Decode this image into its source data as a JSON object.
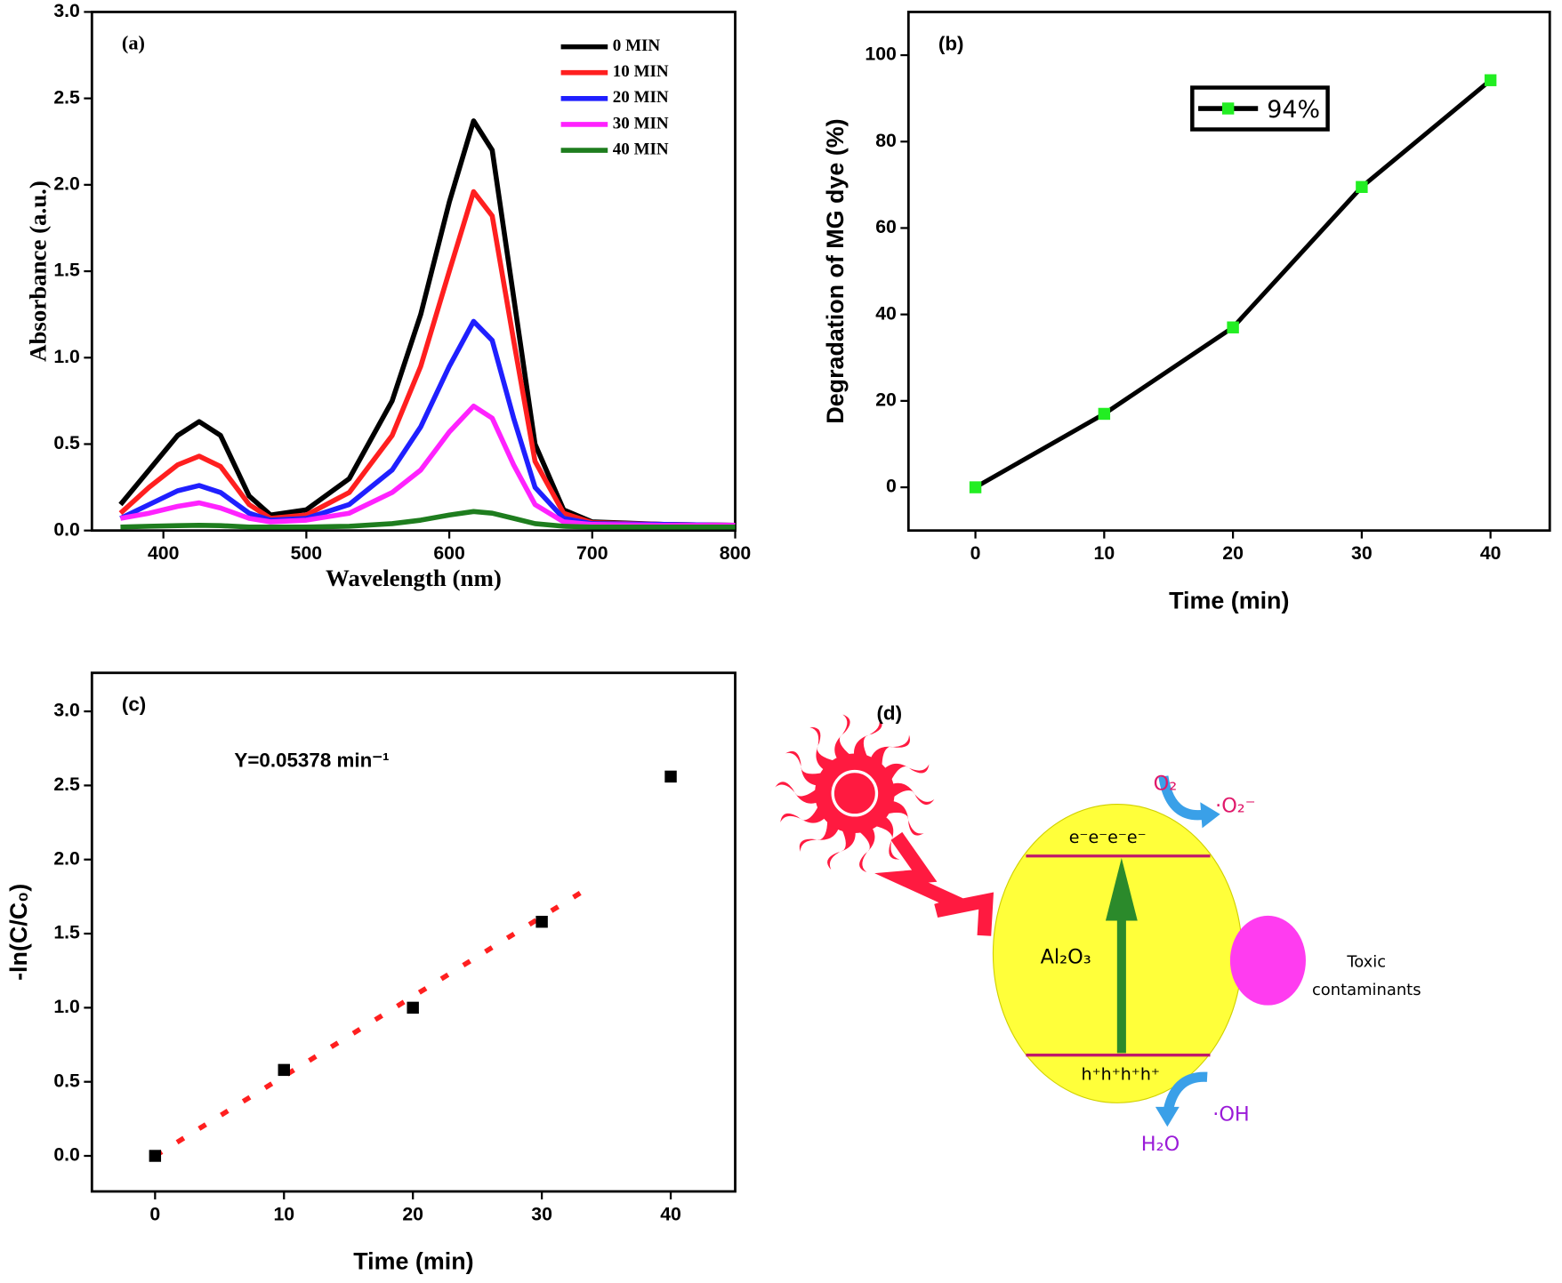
{
  "chart_data": [
    {
      "type": "line",
      "title": "(a)",
      "x_label": "Wavelength (nm)",
      "y_label": "Absorbance (a.u.)",
      "x": [
        370,
        390,
        410,
        425,
        440,
        460,
        475,
        500,
        530,
        560,
        580,
        600,
        617,
        630,
        645,
        660,
        680,
        700,
        750,
        800
      ],
      "series": [
        {
          "name": "0  MIN",
          "color": "#000000",
          "values": [
            0.15,
            0.35,
            0.55,
            0.63,
            0.55,
            0.2,
            0.09,
            0.12,
            0.3,
            0.75,
            1.25,
            1.9,
            2.37,
            2.2,
            1.35,
            0.5,
            0.12,
            0.05,
            0.035,
            0.03
          ]
        },
        {
          "name": "10 MIN",
          "color": "#ff1f1f",
          "values": [
            0.1,
            0.25,
            0.38,
            0.43,
            0.37,
            0.15,
            0.07,
            0.09,
            0.22,
            0.55,
            0.95,
            1.5,
            1.96,
            1.82,
            1.1,
            0.4,
            0.1,
            0.045,
            0.035,
            0.03
          ]
        },
        {
          "name": "20 MIN",
          "color": "#1f1fff",
          "values": [
            0.07,
            0.15,
            0.23,
            0.26,
            0.22,
            0.1,
            0.06,
            0.07,
            0.15,
            0.35,
            0.6,
            0.95,
            1.21,
            1.1,
            0.65,
            0.25,
            0.07,
            0.04,
            0.035,
            0.03
          ]
        },
        {
          "name": "30 MIN",
          "color": "#ff22ff",
          "values": [
            0.07,
            0.1,
            0.14,
            0.16,
            0.13,
            0.07,
            0.05,
            0.06,
            0.1,
            0.22,
            0.35,
            0.57,
            0.72,
            0.65,
            0.38,
            0.15,
            0.05,
            0.035,
            0.03,
            0.03
          ]
        },
        {
          "name": "40 MIN",
          "color": "#1e7d1e",
          "values": [
            0.02,
            0.025,
            0.028,
            0.03,
            0.028,
            0.02,
            0.02,
            0.02,
            0.025,
            0.04,
            0.06,
            0.09,
            0.11,
            0.1,
            0.07,
            0.04,
            0.025,
            0.02,
            0.02,
            0.02
          ]
        }
      ],
      "xlim": [
        350,
        800
      ],
      "xticks": [
        400,
        500,
        600,
        700,
        800
      ],
      "ylim": [
        0,
        3
      ],
      "yticks": [
        {
          "value": 0,
          "label": "0.0"
        },
        {
          "value": 0.5,
          "label": "0.5"
        },
        {
          "value": 1,
          "label": "1.0"
        },
        {
          "value": 1.5,
          "label": "1.5"
        },
        {
          "value": 2,
          "label": "2.0"
        },
        {
          "value": 2.5,
          "label": "2.5"
        },
        {
          "value": 3,
          "label": "3.0"
        }
      ],
      "legend": "upper right"
    },
    {
      "type": "line",
      "title": "(b)",
      "x_label": "Time (min)",
      "y_label": "Degradation of MG dye (%)",
      "x": [
        0,
        10,
        20,
        30,
        40
      ],
      "series": [
        {
          "name": "94%",
          "color": "#000000",
          "marker_color": "#22ee22",
          "values": [
            0,
            17,
            37,
            69.5,
            94.2
          ]
        }
      ],
      "xlim": [
        -5.2,
        44.6
      ],
      "xticks": [
        0,
        10,
        20,
        30,
        40
      ],
      "ylim": [
        -10,
        110
      ],
      "yticks": [
        0,
        20,
        40,
        60,
        80,
        100
      ],
      "legend": "upper center"
    },
    {
      "type": "scatter",
      "title": "(c)",
      "x_label": "Time (min)",
      "y_label": "-ln(C/C₀)",
      "annotation": "Y=0.05378 min⁻¹",
      "x": [
        0,
        10,
        20,
        30,
        40
      ],
      "series": [
        {
          "color": "#000000",
          "values": [
            0,
            0.58,
            1.0,
            1.58,
            2.56
          ]
        }
      ],
      "fit": {
        "color": "#ff1f1f",
        "x": [
          0,
          34
        ],
        "values": [
          0,
          1.829
        ]
      },
      "xlim": [
        -4.9,
        45
      ],
      "xticks": [
        0,
        10,
        20,
        30,
        40
      ],
      "ylim": [
        -0.24,
        3.26
      ],
      "yticks": [
        {
          "value": 0,
          "label": "0.0"
        },
        {
          "value": 0.5,
          "label": "0.5"
        },
        {
          "value": 1,
          "label": "1.0"
        },
        {
          "value": 1.5,
          "label": "1.5"
        },
        {
          "value": 2,
          "label": "2.0"
        },
        {
          "value": 2.5,
          "label": "2.5"
        },
        {
          "value": 3,
          "label": "3.0"
        }
      ]
    }
  ],
  "diagram": {
    "title": "(d)",
    "oxygen": "O₂",
    "superoxide": "·O₂⁻",
    "electrons": "e⁻e⁻e⁻e⁻",
    "catalyst": "Al₂O₃",
    "holes": "h⁺h⁺h⁺h⁺",
    "water": "H₂O",
    "hydroxyl": "·OH",
    "contaminant": [
      "Toxic",
      "contaminants"
    ]
  }
}
